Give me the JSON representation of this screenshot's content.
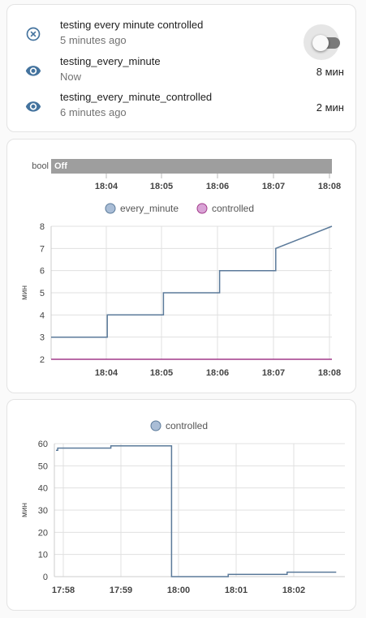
{
  "entities": [
    {
      "name": "testing every minute controlled",
      "sub": "5 minutes ago",
      "value": "",
      "icon": "close-circle-icon",
      "has_toggle": true,
      "toggle_on": false
    },
    {
      "name": "testing_every_minute",
      "sub": "Now",
      "value": "8 мин",
      "icon": "eye-icon",
      "has_toggle": false
    },
    {
      "name": "testing_every_minute_controlled",
      "sub": "6 minutes ago",
      "value": "2 мин",
      "icon": "eye-icon",
      "has_toggle": false
    }
  ],
  "timeline": {
    "label": "bool",
    "state": "Off",
    "color": "#9e9e9e"
  },
  "chart_data": [
    {
      "type": "line",
      "step": true,
      "legend": [
        "every_minute",
        "controlled"
      ],
      "legend_position": "top-center",
      "ylabel": "мин",
      "ylim": [
        2,
        8
      ],
      "yticks": [
        "2",
        "3",
        "4",
        "5",
        "6",
        "7",
        "8"
      ],
      "xticks": [
        "18:04",
        "18:05",
        "18:06",
        "18:07",
        "18:08"
      ],
      "grid": true,
      "series": [
        {
          "name": "every_minute",
          "color": "#5b7a9a",
          "x": [
            0,
            1,
            1,
            2,
            2,
            3,
            3,
            4,
            4,
            5
          ],
          "y": [
            3,
            3,
            4,
            4,
            5,
            5,
            6,
            6,
            7,
            8
          ]
        },
        {
          "name": "controlled",
          "color": "#a23a8a",
          "x": [
            0,
            5
          ],
          "y": [
            2,
            2
          ]
        }
      ]
    },
    {
      "type": "line",
      "step": true,
      "legend": [
        "controlled"
      ],
      "legend_position": "top-center",
      "ylabel": "мин",
      "ylim": [
        0,
        60
      ],
      "yticks": [
        "0",
        "10",
        "20",
        "30",
        "40",
        "50",
        "60"
      ],
      "xticks": [
        "17:58",
        "17:59",
        "18:00",
        "18:01",
        "18:02"
      ],
      "grid": true,
      "series": [
        {
          "name": "controlled",
          "color": "#5b7a9a",
          "x": [
            0,
            0.03,
            0.03,
            0.95,
            0.95,
            2.0,
            2.0,
            2.98,
            2.98,
            4.0,
            4.0,
            4.85
          ],
          "y": [
            57,
            57,
            58,
            58,
            59,
            59,
            0,
            0,
            1,
            1,
            2,
            2
          ]
        }
      ]
    }
  ],
  "colors": {
    "line": "#5b7a9a",
    "legend_every_minute": "#a9bdd6",
    "legend_controlled": "#d9a3d6",
    "grid": "#e0e0e0",
    "icon": "#44739e"
  }
}
